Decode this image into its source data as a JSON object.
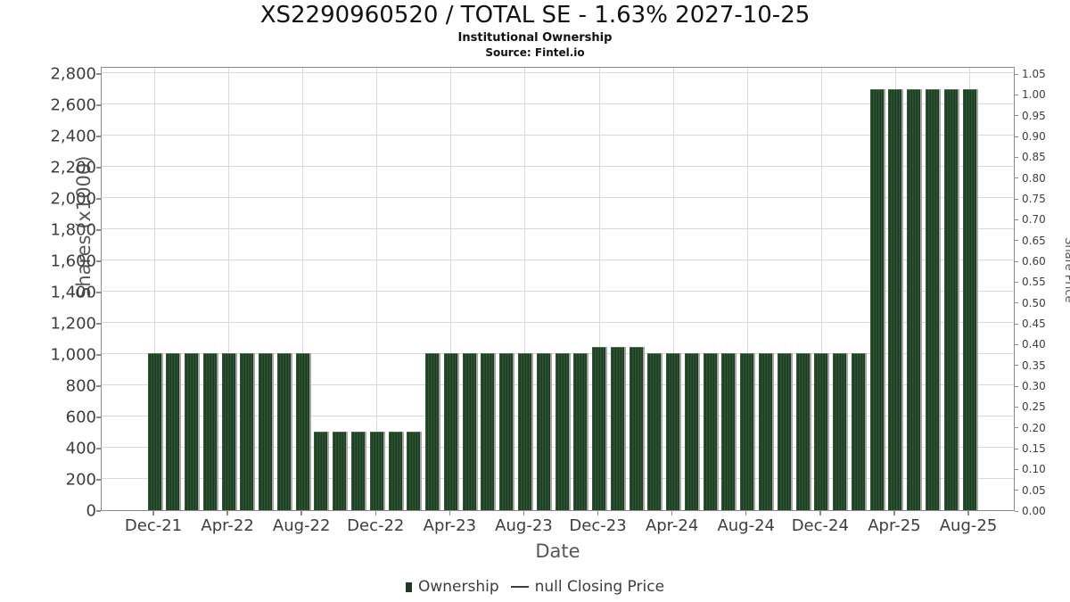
{
  "header": {
    "title": "XS2290960520 / TOTAL SE - 1.63% 2027-10-25",
    "subtitle": "Institutional Ownership",
    "source": "Source: Fintel.io"
  },
  "chart_data": {
    "type": "bar",
    "title": "XS2290960520 / TOTAL SE - 1.63% 2027-10-25",
    "subtitle": "Institutional Ownership",
    "source": "Source: Fintel.io",
    "xlabel": "Date",
    "ylabel_left": "Shares (x1000)",
    "ylabel_right": "Share Price",
    "y_left_axis": {
      "min": 0,
      "max": 2800,
      "step": 200
    },
    "y_right_axis": {
      "min": 0.0,
      "max": 1.05,
      "step": 0.05
    },
    "grid": true,
    "legend_position": "bottom-center",
    "x_tick_labels": [
      "Dec-21",
      "Apr-22",
      "Aug-22",
      "Dec-22",
      "Apr-23",
      "Aug-23",
      "Dec-23",
      "Apr-24",
      "Aug-24",
      "Dec-24",
      "Apr-25",
      "Aug-25"
    ],
    "categories": [
      "Dec-21",
      "Jan-22",
      "Feb-22",
      "Mar-22",
      "Apr-22",
      "May-22",
      "Jun-22",
      "Jul-22",
      "Aug-22",
      "Sep-22",
      "Oct-22",
      "Nov-22",
      "Dec-22",
      "Jan-23",
      "Feb-23",
      "Mar-23",
      "Apr-23",
      "May-23",
      "Jun-23",
      "Jul-23",
      "Aug-23",
      "Sep-23",
      "Oct-23",
      "Nov-23",
      "Dec-23",
      "Jan-24",
      "Feb-24",
      "Mar-24",
      "Apr-24",
      "May-24",
      "Jun-24",
      "Jul-24",
      "Aug-24",
      "Sep-24",
      "Oct-24",
      "Nov-24",
      "Dec-24",
      "Jan-25",
      "Feb-25",
      "Mar-25",
      "Apr-25",
      "May-25",
      "Jun-25",
      "Jul-25",
      "Aug-25"
    ],
    "series": [
      {
        "name": "Ownership",
        "values": [
          1000,
          1000,
          1000,
          1000,
          1000,
          1000,
          1000,
          1000,
          1000,
          500,
          500,
          500,
          500,
          500,
          500,
          1000,
          1000,
          1000,
          1000,
          1000,
          1000,
          1000,
          1000,
          1000,
          1040,
          1040,
          1040,
          1000,
          1000,
          1000,
          1000,
          1000,
          1000,
          1000,
          1000,
          1000,
          1000,
          1000,
          1000,
          2690,
          2690,
          2690,
          2690,
          2690,
          2690
        ]
      },
      {
        "name": "null Closing Price",
        "values": []
      }
    ]
  },
  "legend": {
    "ownership_label": "Ownership",
    "price_label": "null Closing Price"
  },
  "colors": {
    "bar": "#24492a",
    "bar_stripe_light": "#2f5535",
    "bar_stripe_dark": "#1b3a20",
    "bar_shadow": "#a6a6a6",
    "grid": "#d9d9d9",
    "frame": "#8c8c8c",
    "tick_text": "#3d3d3d",
    "axis_label_text": "#575757"
  }
}
